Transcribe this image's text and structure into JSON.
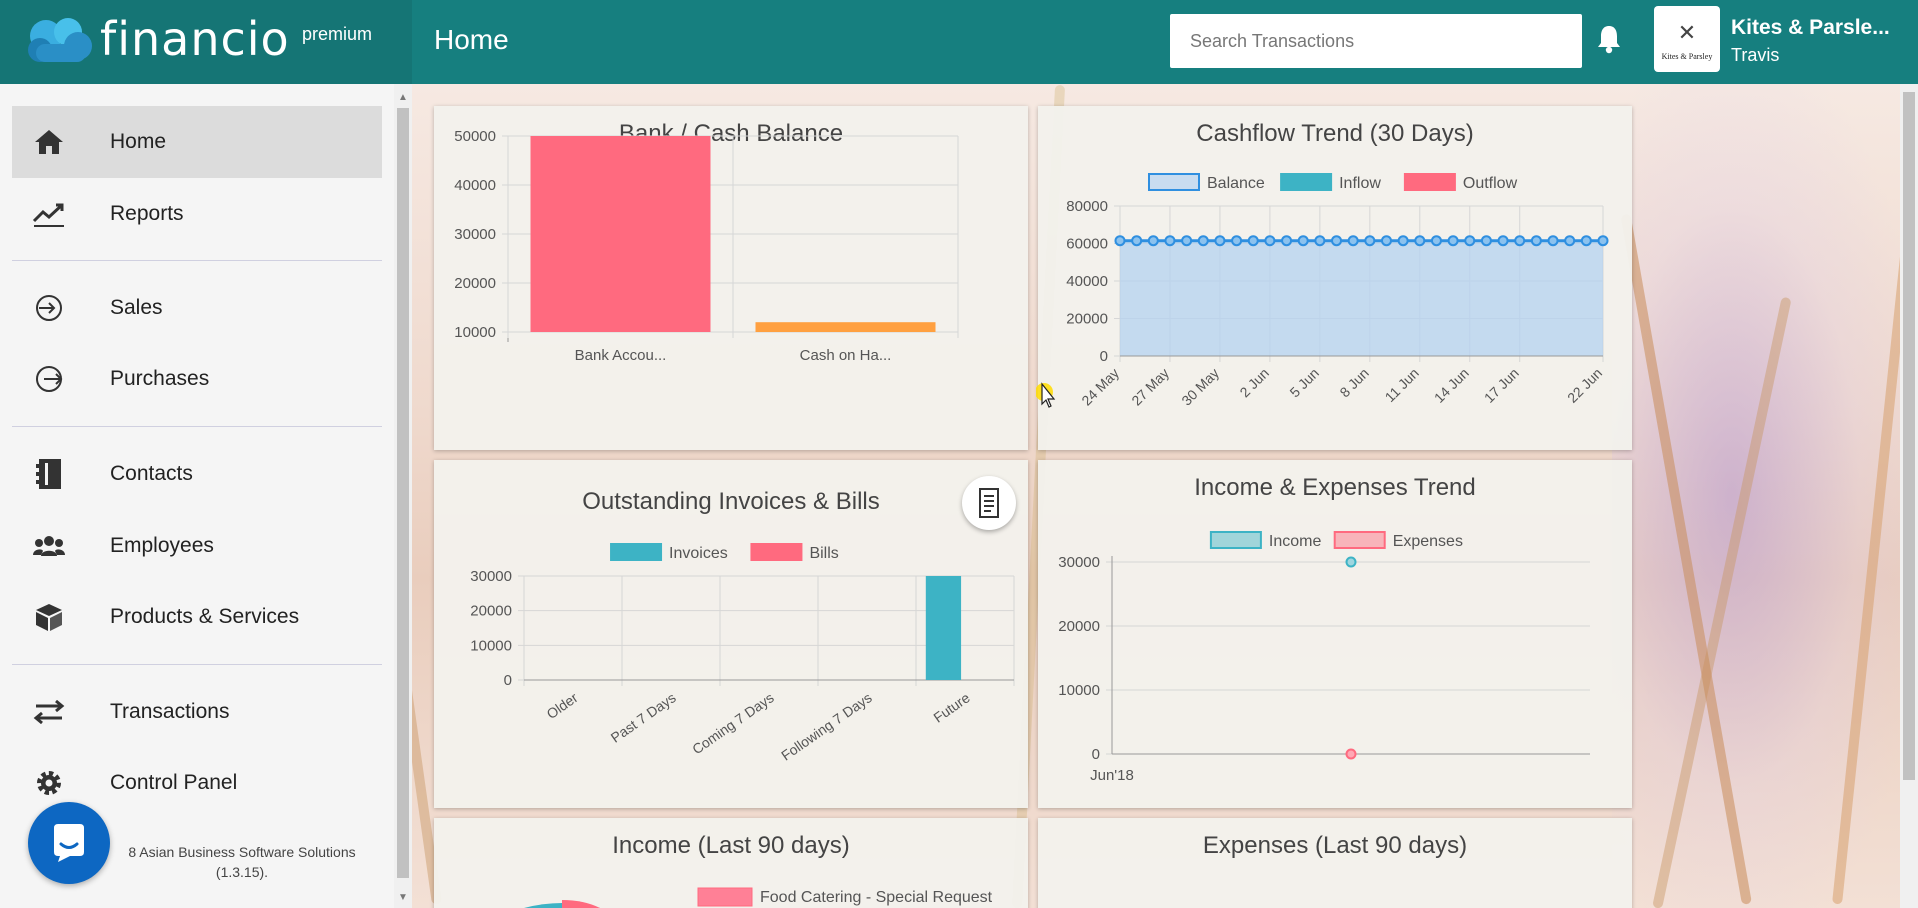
{
  "brand": {
    "name": "financio",
    "tier": "premium"
  },
  "header": {
    "title": "Home",
    "search_placeholder": "Search Transactions",
    "company_logo_text": "Kites & Parsley",
    "company_name": "Kites & Parsle...",
    "user_name": "Travis",
    "bell_icon": "bell-icon"
  },
  "sidebar": {
    "items": [
      {
        "label": "Home",
        "icon": "home-icon",
        "active": true
      },
      {
        "label": "Reports",
        "icon": "trend-line-icon"
      },
      {
        "label": "Sales",
        "icon": "sign-in-icon"
      },
      {
        "label": "Purchases",
        "icon": "sign-out-icon"
      },
      {
        "label": "Contacts",
        "icon": "address-book-icon"
      },
      {
        "label": "Employees",
        "icon": "people-icon"
      },
      {
        "label": "Products & Services",
        "icon": "cube-icon"
      },
      {
        "label": "Transactions",
        "icon": "swap-arrows-icon"
      },
      {
        "label": "Control Panel",
        "icon": "gear-icon"
      }
    ],
    "footer_line1": "8 Asian Business Software Solutions",
    "footer_line2": "(1.3.15)."
  },
  "cards": {
    "bank": {
      "title": "Bank / Cash Balance"
    },
    "cashflow": {
      "title": "Cashflow Trend (30 Days)"
    },
    "outstanding": {
      "title": "Outstanding Invoices & Bills"
    },
    "incexp": {
      "title": "Income & Expenses Trend"
    },
    "income90": {
      "title": "Income (Last 90 days)",
      "legend": [
        "Food Catering - Special Request"
      ]
    },
    "expense90": {
      "title": "Expenses (Last 90 days)"
    }
  },
  "colors": {
    "header": "#167f7f",
    "red": "#ff6a7f",
    "orange": "#ffa040",
    "teal": "#3db3c5",
    "blue": "#2f8fe0",
    "blue_fill": "#c8dcf0"
  },
  "chart_data": [
    {
      "id": "bank",
      "type": "bar",
      "title": "Bank / Cash Balance",
      "categories": [
        "Bank Accou...",
        "Cash on Ha..."
      ],
      "values": [
        50000,
        12000
      ],
      "colors": [
        "#ff6a7f",
        "#ffa040"
      ],
      "ylim": [
        10000,
        50000
      ],
      "yticks": [
        10000,
        20000,
        30000,
        40000,
        50000
      ],
      "grid": true
    },
    {
      "id": "cashflow",
      "type": "line",
      "title": "Cashflow Trend (30 Days)",
      "legend": [
        "Balance",
        "Inflow",
        "Outflow"
      ],
      "xticks": [
        "24 May",
        "27 May",
        "30 May",
        "2 Jun",
        "5 Jun",
        "8 Jun",
        "11 Jun",
        "14 Jun",
        "17 Jun",
        "22 Jun"
      ],
      "series": [
        {
          "name": "Balance",
          "values": [
            61500,
            61500,
            61500,
            61500,
            61500,
            61500,
            61500,
            61500,
            61500,
            61500,
            61500,
            61500,
            61500,
            61500,
            61500,
            61500,
            61500,
            61500,
            61500,
            61500,
            61500,
            61500,
            61500,
            61500,
            61500,
            61500,
            61500,
            61500,
            61500,
            61500
          ]
        },
        {
          "name": "Inflow",
          "values": [
            0,
            0,
            0,
            0,
            0,
            0,
            0,
            0,
            0,
            0,
            0,
            0,
            0,
            0,
            0,
            0,
            0,
            0,
            0,
            0,
            0,
            0,
            0,
            0,
            0,
            0,
            0,
            0,
            0,
            0
          ]
        },
        {
          "name": "Outflow",
          "values": [
            0,
            0,
            0,
            0,
            0,
            0,
            0,
            0,
            0,
            0,
            0,
            0,
            0,
            0,
            0,
            0,
            0,
            0,
            0,
            0,
            0,
            0,
            0,
            0,
            0,
            0,
            0,
            0,
            0,
            0
          ]
        }
      ],
      "ylim": [
        0,
        80000
      ],
      "yticks": [
        0,
        20000,
        40000,
        60000,
        80000
      ],
      "grid": true
    },
    {
      "id": "outstanding",
      "type": "bar",
      "title": "Outstanding Invoices & Bills",
      "legend": [
        "Invoices",
        "Bills"
      ],
      "categories": [
        "Older",
        "Past 7 Days",
        "Coming 7 Days",
        "Following 7 Days",
        "Future"
      ],
      "series": [
        {
          "name": "Invoices",
          "values": [
            0,
            0,
            0,
            0,
            30000
          ]
        },
        {
          "name": "Bills",
          "values": [
            0,
            0,
            0,
            0,
            0
          ]
        }
      ],
      "ylim": [
        0,
        30000
      ],
      "yticks": [
        0,
        10000,
        20000,
        30000
      ],
      "grid": true
    },
    {
      "id": "incexp",
      "type": "scatter",
      "title": "Income & Expenses Trend",
      "legend": [
        "Income",
        "Expenses"
      ],
      "x": [
        "Jun'18"
      ],
      "series": [
        {
          "name": "Income",
          "values": [
            30000
          ]
        },
        {
          "name": "Expenses",
          "values": [
            0
          ]
        }
      ],
      "ylim": [
        0,
        30000
      ],
      "yticks": [
        0,
        10000,
        20000,
        30000
      ],
      "grid": true
    }
  ]
}
